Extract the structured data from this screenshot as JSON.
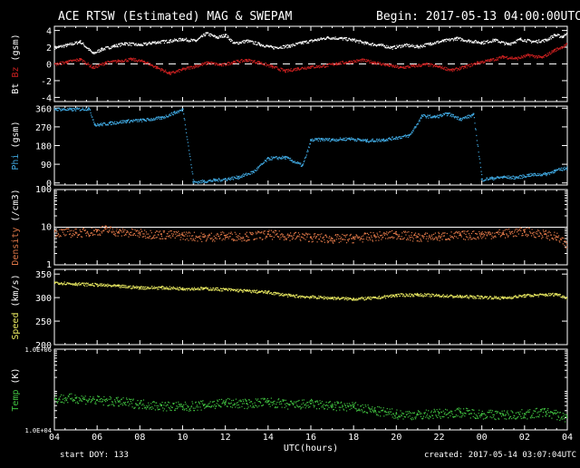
{
  "header": {
    "title": "ACE RTSW (Estimated) MAG & SWEPAM",
    "begin_label": "Begin:",
    "begin_value": "2017-05-13 04:00:00UTC"
  },
  "footer": {
    "start_doy_label": "start DOY:",
    "start_doy_value": "133",
    "created_label": "created:",
    "created_value": "2017-05-14 03:07:04UTC"
  },
  "colors": {
    "bt": "#ffffff",
    "bz": "#cc2020",
    "phi": "#40a8e0",
    "density": "#e07848",
    "speed": "#e8e860",
    "temp": "#40c040"
  },
  "chart_data": {
    "type": "scatter",
    "x_axis": {
      "label": "UTC(hours)",
      "tick_labels": [
        "04",
        "06",
        "08",
        "10",
        "12",
        "14",
        "16",
        "18",
        "20",
        "22",
        "00",
        "02",
        "04"
      ],
      "range_hours": [
        0,
        24
      ]
    },
    "panels": [
      {
        "id": "mag",
        "ylabel_parts": [
          "Bt",
          "Bz",
          "(gsm)"
        ],
        "ylim": [
          -4.5,
          4.5
        ],
        "ticks": [
          4,
          2,
          0,
          -2,
          -4
        ],
        "tick_labels": [
          "4",
          "2",
          "0",
          "-2",
          "-4"
        ],
        "zero_line": "dashed",
        "series": [
          {
            "name": "Bt",
            "color_key": "bt",
            "x": [
              0.0,
              0.6,
              1.2,
              1.8,
              2.2,
              2.8,
              3.3,
              4.0,
              4.6,
              5.4,
              6.0,
              6.6,
              7.1,
              7.6,
              8.0,
              8.4,
              9.0,
              9.6,
              10.2,
              11.0,
              11.6,
              12.2,
              12.8,
              13.4,
              14.0,
              14.6,
              15.2,
              15.8,
              16.4,
              17.0,
              17.6,
              18.2,
              18.8,
              19.4,
              20.0,
              20.6,
              21.2,
              21.8,
              22.4,
              23.0,
              23.4,
              23.8,
              24.0
            ],
            "y": [
              2.0,
              2.3,
              2.7,
              1.3,
              1.8,
              2.2,
              2.5,
              2.3,
              2.6,
              2.8,
              3.0,
              2.8,
              3.7,
              3.2,
              3.5,
              2.5,
              2.8,
              2.4,
              2.0,
              2.2,
              2.6,
              2.9,
              3.2,
              3.1,
              2.9,
              2.5,
              2.3,
              2.0,
              2.3,
              2.1,
              2.5,
              2.8,
              3.1,
              2.8,
              2.6,
              2.9,
              2.4,
              3.0,
              2.7,
              2.9,
              3.5,
              3.3,
              4.0
            ]
          },
          {
            "name": "Bz",
            "color_key": "bz",
            "x": [
              0.0,
              0.6,
              1.2,
              1.8,
              2.4,
              3.0,
              3.6,
              4.2,
              4.8,
              5.4,
              6.0,
              6.6,
              7.2,
              7.8,
              8.4,
              9.0,
              9.6,
              10.2,
              10.8,
              11.4,
              12.0,
              12.6,
              13.2,
              13.8,
              14.4,
              15.0,
              15.6,
              16.2,
              16.8,
              17.4,
              18.0,
              18.6,
              19.2,
              19.8,
              20.4,
              21.0,
              21.6,
              22.2,
              22.8,
              23.4,
              24.0
            ],
            "y": [
              0.0,
              0.3,
              0.6,
              -0.4,
              0.2,
              0.4,
              0.6,
              0.3,
              -0.4,
              -1.1,
              -0.6,
              -0.2,
              0.2,
              -0.1,
              0.3,
              0.5,
              0.2,
              -0.3,
              -0.8,
              -0.5,
              -0.3,
              -0.2,
              0.1,
              0.3,
              0.5,
              0.2,
              -0.1,
              -0.4,
              -0.2,
              0.0,
              -0.3,
              -0.7,
              -0.3,
              0.2,
              0.5,
              0.9,
              0.7,
              1.1,
              0.8,
              1.7,
              2.4
            ]
          }
        ]
      },
      {
        "id": "phi",
        "ylabel_parts": [
          "Phi",
          "(gsm)"
        ],
        "ylim": [
          -10,
          370
        ],
        "ticks": [
          360,
          270,
          180,
          90,
          0
        ],
        "tick_labels": [
          "360",
          "270",
          "180",
          "90",
          "0"
        ],
        "series": [
          {
            "name": "Phi",
            "color_key": "phi",
            "x": [
              0.0,
              0.8,
              1.6,
              1.9,
              2.6,
              3.4,
              4.2,
              5.0,
              5.6,
              6.0,
              6.5,
              7.0,
              7.5,
              8.0,
              8.6,
              9.3,
              10.0,
              10.8,
              11.6,
              12.0,
              12.5,
              13.0,
              13.8,
              14.6,
              15.4,
              16.0,
              16.6,
              17.2,
              17.8,
              18.4,
              19.0,
              19.6,
              20.0,
              20.5,
              21.0,
              21.6,
              22.2,
              23.0,
              23.4,
              24.0
            ],
            "y": [
              358,
              355,
              360,
              280,
              290,
              300,
              305,
              315,
              340,
              355,
              5,
              10,
              15,
              20,
              30,
              55,
              120,
              125,
              85,
              208,
              212,
              210,
              215,
              205,
              210,
              220,
              230,
              325,
              320,
              335,
              310,
              330,
              18,
              25,
              30,
              28,
              40,
              45,
              60,
              75
            ]
          }
        ]
      },
      {
        "id": "density",
        "ylabel_parts": [
          "Density",
          "(/cm3)"
        ],
        "ylim_log": [
          1,
          100
        ],
        "tick_labels": [
          "100",
          "10",
          "1"
        ],
        "reference_line": 10,
        "series": [
          {
            "name": "Density",
            "color_key": "density",
            "x": [
              0.0,
              1.0,
              2.0,
              2.4,
              3.0,
              4.0,
              5.0,
              6.0,
              7.0,
              8.0,
              9.0,
              10.0,
              11.0,
              12.0,
              13.0,
              14.0,
              15.0,
              16.0,
              17.0,
              18.0,
              19.0,
              20.0,
              21.0,
              22.0,
              23.0,
              23.5,
              24.0
            ],
            "y": [
              7.5,
              7.2,
              8.0,
              9.0,
              7.5,
              7.0,
              6.5,
              6.2,
              5.5,
              6.0,
              5.8,
              6.5,
              6.0,
              5.5,
              5.0,
              5.2,
              5.8,
              6.5,
              5.5,
              5.8,
              6.2,
              6.5,
              7.0,
              7.8,
              6.5,
              5.5,
              3.0
            ]
          }
        ]
      },
      {
        "id": "speed",
        "ylabel_parts": [
          "Speed",
          "(km/s)"
        ],
        "ylim": [
          200,
          360
        ],
        "ticks": [
          350,
          300,
          250,
          200
        ],
        "tick_labels": [
          "350",
          "300",
          "250",
          "200"
        ],
        "series": [
          {
            "name": "Speed",
            "color_key": "speed",
            "x": [
              0.0,
              1.0,
              2.0,
              3.0,
              4.0,
              5.0,
              6.0,
              7.0,
              8.0,
              9.0,
              10.0,
              11.0,
              12.0,
              13.0,
              14.0,
              15.0,
              16.0,
              17.0,
              18.0,
              19.0,
              20.0,
              21.0,
              22.0,
              23.0,
              23.5,
              24.0
            ],
            "y": [
              333,
              330,
              328,
              325,
              322,
              322,
              320,
              320,
              318,
              315,
              312,
              305,
              302,
              300,
              298,
              300,
              306,
              307,
              305,
              303,
              302,
              300,
              305,
              307,
              308,
              300
            ]
          }
        ]
      },
      {
        "id": "temp",
        "ylabel_parts": [
          "Temp",
          "(K)"
        ],
        "ylim_log": [
          10000,
          1000000
        ],
        "tick_labels": [
          "1.0E+06",
          "1.0E+04"
        ],
        "series": [
          {
            "name": "Temp",
            "color_key": "temp",
            "x": [
              0.0,
              1.0,
              2.0,
              3.0,
              4.0,
              5.0,
              6.0,
              7.0,
              8.0,
              9.0,
              10.0,
              11.0,
              12.0,
              13.0,
              14.0,
              15.0,
              16.0,
              17.0,
              18.0,
              19.0,
              20.0,
              21.0,
              22.0,
              23.0,
              24.0
            ],
            "y": [
              60000,
              62000,
              55000,
              50000,
              45000,
              40000,
              38000,
              42000,
              48000,
              45000,
              50000,
              42000,
              45000,
              40000,
              38000,
              30000,
              25000,
              24000,
              26000,
              28000,
              25000,
              24000,
              25000,
              28000,
              20000
            ]
          }
        ]
      }
    ]
  }
}
